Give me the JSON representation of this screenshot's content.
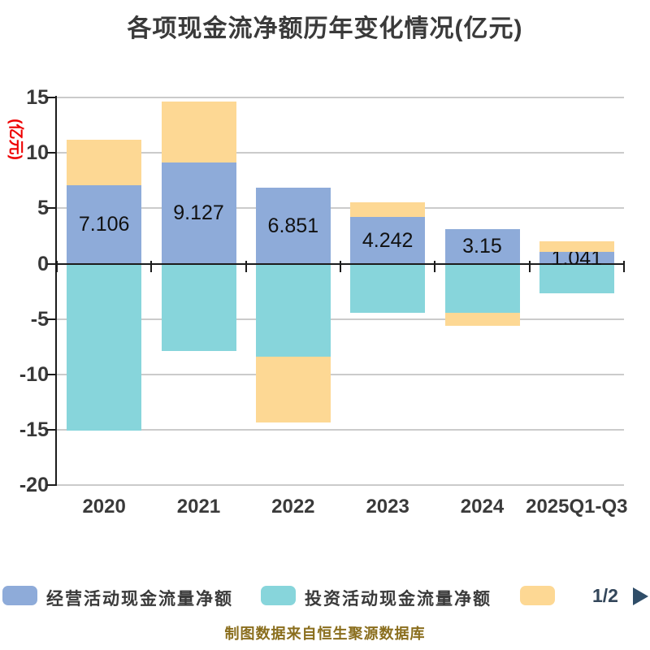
{
  "title": "各项现金流净额历年变化情况(亿元)",
  "y_axis": {
    "unit_label": "(亿元)",
    "unit_label_color": "#ee0000",
    "ticks": [
      "15",
      "10",
      "5",
      "0",
      "-5",
      "-10",
      "-15",
      "-20"
    ],
    "max": 15,
    "min": -20
  },
  "chart_data": {
    "type": "bar",
    "stacked": true,
    "grid": true,
    "categories": [
      "2020",
      "2021",
      "2022",
      "2023",
      "2024",
      "2025Q1-Q3"
    ],
    "series": [
      {
        "name": "经营活动现金流量净额",
        "color": "#8eabd9",
        "values": [
          7.106,
          9.127,
          6.851,
          4.242,
          3.15,
          1.041
        ],
        "value_labels": [
          "7.106",
          "9.127",
          "6.851",
          "4.242",
          "3.15",
          "1.041"
        ]
      },
      {
        "name": "投资活动现金流量净额",
        "color": "#87d5db",
        "values": [
          -15.1,
          -7.9,
          -8.4,
          -4.4,
          -4.4,
          -2.7
        ]
      },
      {
        "name": "",
        "color": "#fdd894",
        "values": [
          4.1,
          5.5,
          -5.9,
          1.3,
          -1.2,
          1.0
        ]
      }
    ],
    "ylim": [
      -20,
      15
    ],
    "legend_position": "bottom"
  },
  "legend": {
    "items": [
      {
        "label": "经营活动现金流量净额",
        "color": "#8eabd9"
      },
      {
        "label": "投资活动现金流量净额",
        "color": "#87d5db"
      },
      {
        "label": "",
        "color": "#fdd894"
      }
    ],
    "pagination": {
      "label": "1/2",
      "prev_color": "#ababab",
      "next_color": "#2f4d68"
    }
  },
  "caption": "制图数据来自恒生聚源数据库",
  "colors": {
    "axis": "#1c1c1c",
    "gridline": "#cbcbcb",
    "title_text": "#3a3a3a",
    "caption_text": "#8a6e1d"
  }
}
